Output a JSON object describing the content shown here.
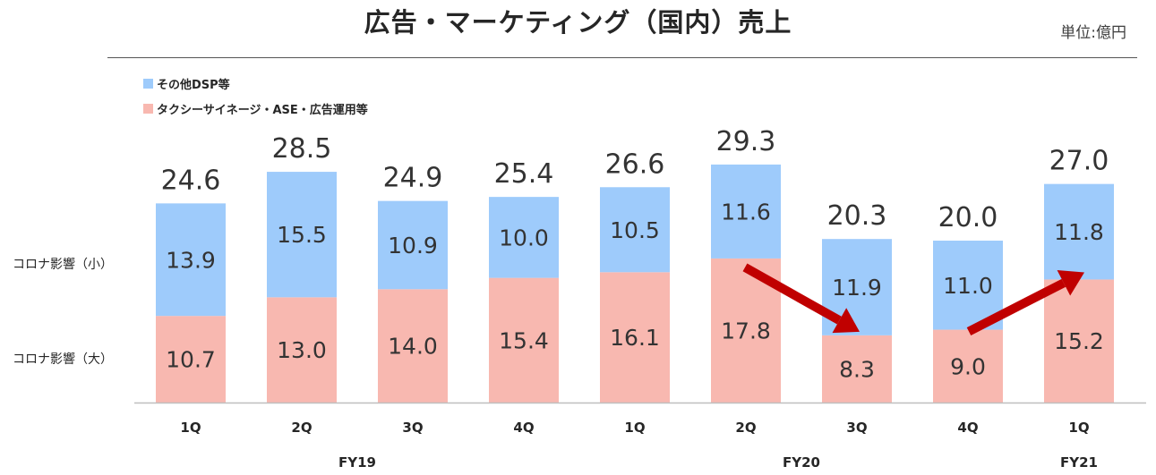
{
  "header": {
    "title": "広告・マーケティング（国内）売上",
    "unit": "単位:億円"
  },
  "legend": {
    "dsp": "その他DSP等",
    "taxi": "タクシーサイネージ・ASE・広告運用等"
  },
  "side_labels": {
    "small": "コロナ影響（小）",
    "large": "コロナ影響（大）"
  },
  "colors": {
    "dsp": "#9ecbfb",
    "taxi": "#f8b8b0",
    "arrow": "#c00000"
  },
  "chart_data": {
    "type": "bar",
    "stacked": true,
    "title": "広告・マーケティング（国内）売上",
    "categories": [
      "1Q",
      "2Q",
      "3Q",
      "4Q",
      "1Q",
      "2Q",
      "3Q",
      "4Q",
      "1Q"
    ],
    "groups": [
      {
        "label": "FY19",
        "categories": [
          "1Q",
          "2Q",
          "3Q",
          "4Q"
        ]
      },
      {
        "label": "FY20",
        "categories": [
          "1Q",
          "2Q",
          "3Q",
          "4Q"
        ]
      },
      {
        "label": "FY21",
        "categories": [
          "1Q"
        ]
      }
    ],
    "series": [
      {
        "name": "タクシーサイネージ・ASE・広告運用等",
        "values": [
          10.7,
          13.0,
          14.0,
          15.4,
          16.1,
          17.8,
          8.3,
          9.0,
          15.2
        ]
      },
      {
        "name": "その他DSP等",
        "values": [
          13.9,
          15.5,
          10.9,
          10.0,
          10.5,
          11.6,
          11.9,
          11.0,
          11.8
        ]
      }
    ],
    "totals": [
      24.6,
      28.5,
      24.9,
      25.4,
      26.6,
      29.3,
      20.3,
      20.0,
      27.0
    ],
    "ylim": [
      0,
      30
    ],
    "legend_position": "top-left",
    "grid": false
  }
}
